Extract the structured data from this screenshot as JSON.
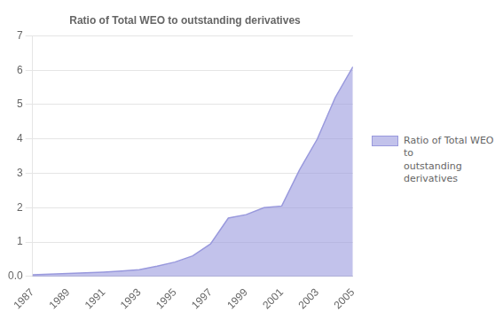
{
  "chart_data": {
    "type": "area",
    "title": "Ratio of Total WEO to outstanding derivatives",
    "x": [
      1987,
      1988,
      1989,
      1990,
      1991,
      1992,
      1993,
      1994,
      1995,
      1996,
      1997,
      1998,
      1999,
      2000,
      2001,
      2002,
      2003,
      2004,
      2005
    ],
    "series": [
      {
        "name": "Ratio of Total WEO to\noutstanding derivatives",
        "color": "#9999dd",
        "values": [
          0.05,
          0.07,
          0.09,
          0.11,
          0.13,
          0.16,
          0.2,
          0.3,
          0.42,
          0.6,
          0.95,
          1.7,
          1.8,
          2.0,
          2.05,
          3.1,
          4.0,
          5.2,
          6.1
        ]
      }
    ],
    "xlim": [
      1987,
      2005
    ],
    "xticks": [
      1987,
      1989,
      1991,
      1993,
      1995,
      1997,
      1999,
      2001,
      2003,
      2005
    ],
    "ylim": [
      0,
      7
    ],
    "yticks": [
      {
        "value": 0,
        "label": "0.0"
      },
      1,
      2,
      3,
      4,
      5,
      6,
      7
    ],
    "grid": true,
    "legend": "right"
  }
}
